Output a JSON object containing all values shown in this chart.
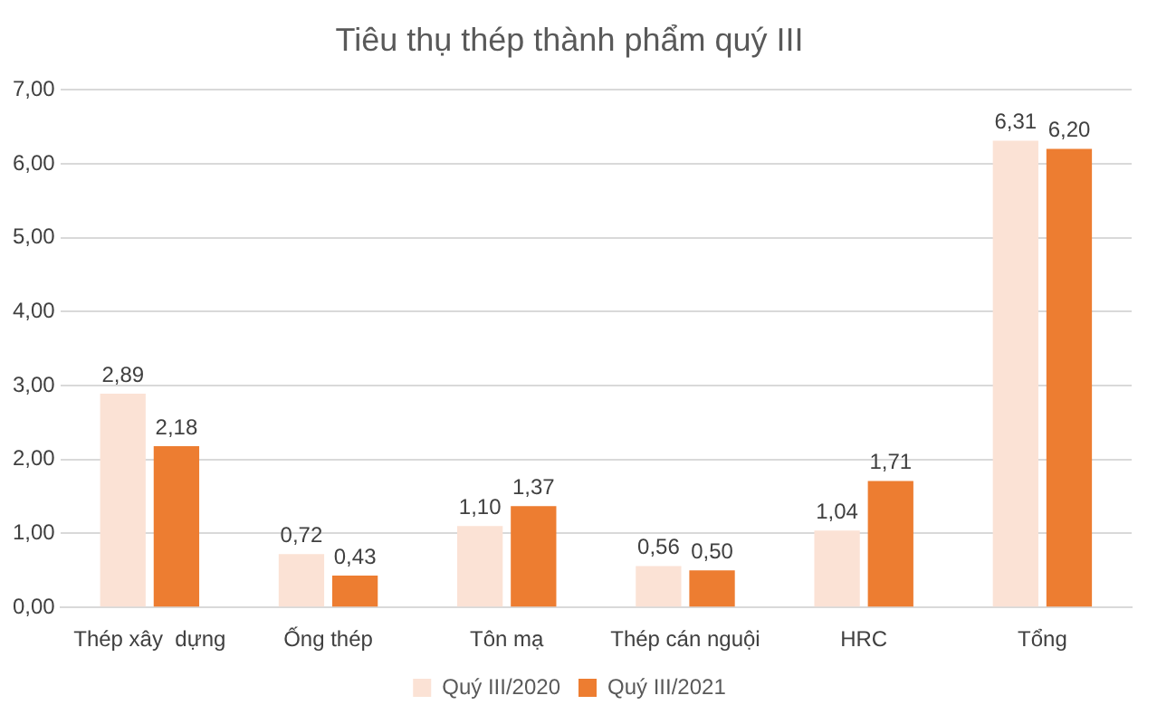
{
  "chart_data": {
    "type": "bar",
    "title": "Tiêu thụ thép thành phẩm quý III",
    "categories": [
      "Thép xây  dựng",
      "Ống thép",
      "Tôn mạ",
      "Thép cán nguội",
      "HRC",
      "Tổng"
    ],
    "series": [
      {
        "name": "Quý III/2020",
        "color": "#fbe2d5",
        "values": [
          2.89,
          0.72,
          1.1,
          0.56,
          1.04,
          6.31
        ],
        "value_labels": [
          "2,89",
          "0,72",
          "1,10",
          "0,56",
          "1,04",
          "6,31"
        ]
      },
      {
        "name": "Quý III/2021",
        "color": "#ed7d31",
        "values": [
          2.18,
          0.43,
          1.37,
          0.5,
          1.71,
          6.2
        ],
        "value_labels": [
          "2,18",
          "0,43",
          "1,37",
          "0,50",
          "1,71",
          "6,20"
        ]
      }
    ],
    "ylim": [
      0,
      7
    ],
    "yticks": [
      {
        "value": 0,
        "label": "0,00"
      },
      {
        "value": 1,
        "label": "1,00"
      },
      {
        "value": 2,
        "label": "2,00"
      },
      {
        "value": 3,
        "label": "3,00"
      },
      {
        "value": 4,
        "label": "4,00"
      },
      {
        "value": 5,
        "label": "5,00"
      },
      {
        "value": 6,
        "label": "6,00"
      },
      {
        "value": 7,
        "label": "7,00"
      }
    ],
    "grid": "y",
    "legend": "bottom"
  }
}
